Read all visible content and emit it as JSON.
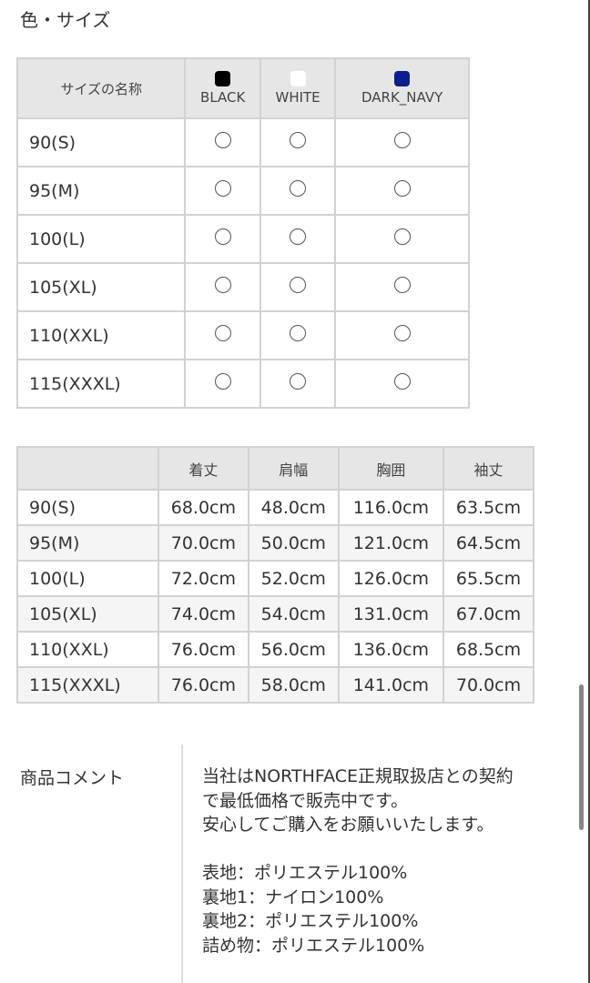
{
  "section_title": "色・サイズ",
  "stock_table": {
    "header": "サイズの名称",
    "colors": [
      {
        "name": "BLACK",
        "hex": "#000000"
      },
      {
        "name": "WHITE",
        "hex": "#ffffff"
      },
      {
        "name": "DARK_NAVY",
        "hex": "#0a1f8f"
      }
    ],
    "rows": [
      {
        "size": "90(S)",
        "marks": [
          "○",
          "○",
          "○"
        ]
      },
      {
        "size": "95(M)",
        "marks": [
          "○",
          "○",
          "○"
        ]
      },
      {
        "size": "100(L)",
        "marks": [
          "○",
          "○",
          "○"
        ]
      },
      {
        "size": "105(XL)",
        "marks": [
          "○",
          "○",
          "○"
        ]
      },
      {
        "size": "110(XXL)",
        "marks": [
          "○",
          "○",
          "○"
        ]
      },
      {
        "size": "115(XXXL)",
        "marks": [
          "○",
          "○",
          "○"
        ]
      }
    ]
  },
  "size_table": {
    "columns": [
      "",
      "着丈",
      "肩幅",
      "胸囲",
      "袖丈"
    ],
    "rows": [
      [
        "90(S)",
        "68.0cm",
        "48.0cm",
        "116.0cm",
        "63.5cm"
      ],
      [
        "95(M)",
        "70.0cm",
        "50.0cm",
        "121.0cm",
        "64.5cm"
      ],
      [
        "100(L)",
        "72.0cm",
        "52.0cm",
        "126.0cm",
        "65.5cm"
      ],
      [
        "105(XL)",
        "74.0cm",
        "54.0cm",
        "131.0cm",
        "67.0cm"
      ],
      [
        "110(XXL)",
        "76.0cm",
        "56.0cm",
        "136.0cm",
        "68.5cm"
      ],
      [
        "115(XXXL)",
        "76.0cm",
        "58.0cm",
        "141.0cm",
        "70.0cm"
      ]
    ]
  },
  "comment": {
    "label": "商品コメント",
    "lines": [
      "当社はNORTHFACE正規取扱店との契約",
      "で最低価格で販売中です。",
      "安心してご購入をお願いいたします。",
      "",
      "表地：ポリエステル100%",
      "裏地1：ナイロン100%",
      "裏地2：ポリエステル100%",
      "詰め物：ポリエステル100%"
    ]
  }
}
